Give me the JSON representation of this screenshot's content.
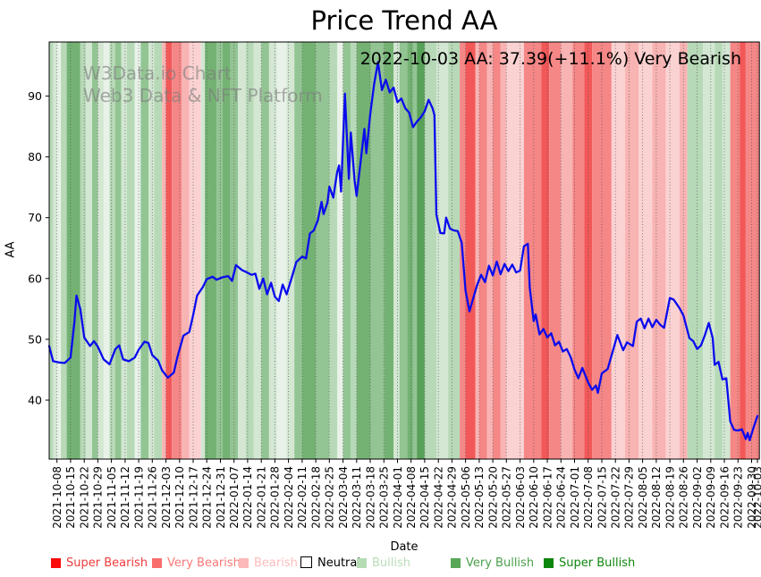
{
  "title": "Price Trend AA",
  "watermark": {
    "line1": "W3Data.io Chart",
    "line2": "Web3 Data & NFT Platform"
  },
  "annotation": {
    "text": "2022-10-03 AA: 37.39(+11.1%) Very Bearish"
  },
  "axes": {
    "x_label": "Date",
    "y_label": "AA"
  },
  "legend": {
    "items": [
      {
        "label": "Super Bearish",
        "swatch_color": "#fa0a0a",
        "text_color": "#ef3b3b",
        "swatch_border": "none"
      },
      {
        "label": "Very Bearish",
        "swatch_color": "#fa6d6d",
        "text_color": "#fa7878",
        "swatch_border": "none"
      },
      {
        "label": "Bearish",
        "swatch_color": "#fcb8b8",
        "text_color": "#fcbcbc",
        "swatch_border": "none"
      },
      {
        "label": "Neutral",
        "swatch_color": "#ffffff",
        "text_color": "#000000",
        "swatch_border": "1px solid #000000"
      },
      {
        "label": "Bullish",
        "swatch_color": "#b5dcb5",
        "text_color": "#b8ddb8",
        "swatch_border": "none"
      },
      {
        "label": "Very Bullish",
        "swatch_color": "#57a757",
        "text_color": "#4ba04b",
        "swatch_border": "none"
      },
      {
        "label": "Super Bullish",
        "swatch_color": "#0c860c",
        "text_color": "#0e870e",
        "swatch_border": "none"
      }
    ]
  },
  "chart_data": {
    "type": "line",
    "title": "Price Trend AA",
    "xlabel": "Date",
    "ylabel": "AA",
    "x_start_date": "2021-10-04",
    "x_end_date": "2022-10-03",
    "x_days_total": 365,
    "ylim": [
      30.3,
      98.9
    ],
    "y_ticks": [
      40,
      50,
      60,
      70,
      80,
      90
    ],
    "grid": {
      "vertical_dotted": true,
      "horizontal": false,
      "color": "#4a4a4a"
    },
    "x_tick_days": [
      4,
      11,
      18,
      25,
      32,
      39,
      46,
      53,
      60,
      67,
      74,
      81,
      88,
      95,
      102,
      109,
      116,
      123,
      130,
      137,
      144,
      151,
      158,
      165,
      172,
      179,
      186,
      193,
      200,
      207,
      214,
      221,
      228,
      235,
      242,
      249,
      256,
      263,
      270,
      277,
      284,
      291,
      298,
      305,
      312,
      319,
      326,
      333,
      340,
      347,
      354,
      361,
      364
    ],
    "x_tick_labels": [
      "2021-10-08",
      "2021-10-15",
      "2021-10-22",
      "2021-10-29",
      "2021-11-05",
      "2021-11-12",
      "2021-11-19",
      "2021-11-26",
      "2021-12-03",
      "2021-12-10",
      "2021-12-17",
      "2021-12-24",
      "2021-12-31",
      "2022-01-07",
      "2022-01-14",
      "2022-01-21",
      "2022-01-28",
      "2022-02-04",
      "2022-02-11",
      "2022-02-18",
      "2022-02-25",
      "2022-03-04",
      "2022-03-11",
      "2022-03-18",
      "2022-03-25",
      "2022-04-01",
      "2022-04-08",
      "2022-04-15",
      "2022-04-22",
      "2022-04-29",
      "2022-05-06",
      "2022-05-13",
      "2022-05-20",
      "2022-05-27",
      "2022-06-03",
      "2022-06-10",
      "2022-06-17",
      "2022-06-24",
      "2022-07-01",
      "2022-07-08",
      "2022-07-15",
      "2022-07-22",
      "2022-07-29",
      "2022-08-05",
      "2022-08-12",
      "2022-08-19",
      "2022-08-26",
      "2022-09-02",
      "2022-09-09",
      "2022-09-16",
      "2022-09-23",
      "2022-09-30",
      "2022-10-03"
    ],
    "series": [
      {
        "name": "AA",
        "color": "#0b0bee",
        "points": [
          [
            0,
            48.9
          ],
          [
            2,
            46.4
          ],
          [
            5,
            46.2
          ],
          [
            8,
            46.1
          ],
          [
            11,
            47.0
          ],
          [
            13,
            53.0
          ],
          [
            14,
            57.2
          ],
          [
            16,
            55.0
          ],
          [
            18,
            50.3
          ],
          [
            21,
            48.9
          ],
          [
            23,
            49.7
          ],
          [
            25,
            48.8
          ],
          [
            28,
            46.7
          ],
          [
            31,
            45.9
          ],
          [
            34,
            48.4
          ],
          [
            36,
            49.0
          ],
          [
            38,
            46.7
          ],
          [
            41,
            46.4
          ],
          [
            44,
            47.0
          ],
          [
            46,
            48.3
          ],
          [
            49,
            49.6
          ],
          [
            51,
            49.4
          ],
          [
            53,
            47.4
          ],
          [
            56,
            46.5
          ],
          [
            58,
            44.9
          ],
          [
            61,
            43.7
          ],
          [
            64,
            44.5
          ],
          [
            66,
            47.2
          ],
          [
            69,
            50.6
          ],
          [
            72,
            51.2
          ],
          [
            74,
            54.0
          ],
          [
            76,
            57.2
          ],
          [
            79,
            58.6
          ],
          [
            81,
            59.9
          ],
          [
            84,
            60.3
          ],
          [
            86,
            59.8
          ],
          [
            89,
            60.2
          ],
          [
            92,
            60.4
          ],
          [
            94,
            59.6
          ],
          [
            96,
            62.2
          ],
          [
            99,
            61.4
          ],
          [
            101,
            61.1
          ],
          [
            104,
            60.6
          ],
          [
            106,
            60.8
          ],
          [
            108,
            58.3
          ],
          [
            110,
            60.0
          ],
          [
            112,
            57.4
          ],
          [
            114,
            59.3
          ],
          [
            116,
            57.0
          ],
          [
            118,
            56.3
          ],
          [
            120,
            59.0
          ],
          [
            122,
            57.4
          ],
          [
            125,
            60.5
          ],
          [
            127,
            62.7
          ],
          [
            130,
            63.6
          ],
          [
            132,
            63.3
          ],
          [
            134,
            67.4
          ],
          [
            136,
            67.9
          ],
          [
            138,
            69.5
          ],
          [
            140,
            72.6
          ],
          [
            141,
            70.6
          ],
          [
            143,
            72.5
          ],
          [
            144,
            75.1
          ],
          [
            146,
            73.3
          ],
          [
            148,
            77.5
          ],
          [
            149,
            78.6
          ],
          [
            150,
            74.3
          ],
          [
            152,
            90.4
          ],
          [
            154,
            76.4
          ],
          [
            155,
            84.0
          ],
          [
            157,
            76.0
          ],
          [
            158,
            73.6
          ],
          [
            160,
            79.0
          ],
          [
            162,
            84.6
          ],
          [
            163,
            80.6
          ],
          [
            165,
            87.0
          ],
          [
            167,
            92.0
          ],
          [
            169,
            95.6
          ],
          [
            171,
            91.0
          ],
          [
            173,
            92.7
          ],
          [
            175,
            90.6
          ],
          [
            177,
            91.4
          ],
          [
            179,
            89.0
          ],
          [
            181,
            89.6
          ],
          [
            183,
            88.0
          ],
          [
            185,
            87.3
          ],
          [
            187,
            84.9
          ],
          [
            189,
            85.8
          ],
          [
            191,
            86.5
          ],
          [
            193,
            87.5
          ],
          [
            195,
            89.4
          ],
          [
            197,
            88.0
          ],
          [
            198,
            86.9
          ],
          [
            199,
            70.5
          ],
          [
            201,
            67.5
          ],
          [
            203,
            67.4
          ],
          [
            204,
            70.0
          ],
          [
            206,
            68.2
          ],
          [
            208,
            67.9
          ],
          [
            210,
            67.8
          ],
          [
            212,
            65.9
          ],
          [
            214,
            58.0
          ],
          [
            216,
            54.6
          ],
          [
            218,
            56.8
          ],
          [
            220,
            59.0
          ],
          [
            222,
            60.6
          ],
          [
            224,
            59.4
          ],
          [
            226,
            62.1
          ],
          [
            228,
            60.5
          ],
          [
            230,
            62.8
          ],
          [
            232,
            60.7
          ],
          [
            234,
            62.4
          ],
          [
            236,
            61.2
          ],
          [
            238,
            62.3
          ],
          [
            240,
            61.0
          ],
          [
            242,
            61.3
          ],
          [
            244,
            65.3
          ],
          [
            246,
            65.7
          ],
          [
            247,
            58.5
          ],
          [
            249,
            53.0
          ],
          [
            250,
            54.1
          ],
          [
            252,
            50.8
          ],
          [
            254,
            51.7
          ],
          [
            256,
            50.3
          ],
          [
            258,
            51.0
          ],
          [
            260,
            49.0
          ],
          [
            262,
            49.6
          ],
          [
            264,
            48.0
          ],
          [
            266,
            48.4
          ],
          [
            268,
            47.1
          ],
          [
            270,
            45.0
          ],
          [
            272,
            43.6
          ],
          [
            274,
            45.3
          ],
          [
            277,
            42.9
          ],
          [
            279,
            41.7
          ],
          [
            281,
            42.4
          ],
          [
            282,
            41.2
          ],
          [
            284,
            44.4
          ],
          [
            287,
            45.1
          ],
          [
            289,
            47.3
          ],
          [
            292,
            50.7
          ],
          [
            295,
            48.2
          ],
          [
            297,
            49.5
          ],
          [
            300,
            48.9
          ],
          [
            302,
            52.9
          ],
          [
            304,
            53.4
          ],
          [
            306,
            51.8
          ],
          [
            308,
            53.4
          ],
          [
            310,
            52.0
          ],
          [
            312,
            53.2
          ],
          [
            314,
            52.4
          ],
          [
            316,
            51.9
          ],
          [
            319,
            56.8
          ],
          [
            321,
            56.5
          ],
          [
            324,
            55.1
          ],
          [
            326,
            53.9
          ],
          [
            329,
            50.2
          ],
          [
            331,
            49.7
          ],
          [
            333,
            48.4
          ],
          [
            335,
            49.0
          ],
          [
            337,
            50.7
          ],
          [
            339,
            52.7
          ],
          [
            341,
            50.2
          ],
          [
            342,
            45.8
          ],
          [
            344,
            46.3
          ],
          [
            346,
            43.4
          ],
          [
            348,
            43.6
          ],
          [
            350,
            36.5
          ],
          [
            352,
            35.1
          ],
          [
            354,
            35.0
          ],
          [
            356,
            35.2
          ],
          [
            358,
            33.6
          ],
          [
            359,
            34.6
          ],
          [
            360,
            33.4
          ],
          [
            362,
            35.5
          ],
          [
            364,
            37.39
          ]
        ]
      }
    ],
    "sentiment_bands": {
      "palette": [
        "#f25858",
        "#f58787",
        "#f8b3b3",
        "#fbd2d2",
        "#ffffff",
        "#e9f2e9",
        "#d3e7d3",
        "#b7d9b7",
        "#93c493",
        "#74b274",
        "#58a158"
      ],
      "palette_names": [
        "super-bearish",
        "very-bearish",
        "bearish",
        "bearish-pale",
        "neutral",
        "bullish-palest",
        "bullish-pale",
        "bullish",
        "very-bullish-light",
        "very-bullish",
        "super-bullish"
      ],
      "runs": [
        [
          7,
          2
        ],
        [
          6,
          2
        ],
        [
          5,
          2
        ],
        [
          7,
          3
        ],
        [
          9,
          7
        ],
        [
          7,
          3
        ],
        [
          6,
          3
        ],
        [
          8,
          3
        ],
        [
          6,
          3
        ],
        [
          5,
          3
        ],
        [
          7,
          3
        ],
        [
          8,
          3
        ],
        [
          6,
          3
        ],
        [
          7,
          4
        ],
        [
          5,
          3
        ],
        [
          8,
          4
        ],
        [
          6,
          3
        ],
        [
          7,
          4
        ],
        [
          2,
          2
        ],
        [
          0,
          3
        ],
        [
          1,
          5
        ],
        [
          2,
          4
        ],
        [
          3,
          6
        ],
        [
          6,
          2
        ],
        [
          9,
          6
        ],
        [
          8,
          3
        ],
        [
          9,
          4
        ],
        [
          8,
          4
        ],
        [
          6,
          4
        ],
        [
          7,
          4
        ],
        [
          6,
          4
        ],
        [
          8,
          4
        ],
        [
          6,
          4
        ],
        [
          5,
          5
        ],
        [
          6,
          4
        ],
        [
          8,
          4
        ],
        [
          9,
          7
        ],
        [
          8,
          7
        ],
        [
          7,
          4
        ],
        [
          5,
          3
        ],
        [
          8,
          4
        ],
        [
          7,
          3
        ],
        [
          9,
          7
        ],
        [
          8,
          7
        ],
        [
          9,
          5
        ],
        [
          6,
          3
        ],
        [
          8,
          4
        ],
        [
          9,
          3
        ],
        [
          8,
          2
        ],
        [
          10,
          4
        ],
        [
          7,
          6
        ],
        [
          6,
          6
        ],
        [
          7,
          6
        ],
        [
          1,
          3
        ],
        [
          0,
          5
        ],
        [
          2,
          2
        ],
        [
          1,
          4
        ],
        [
          2,
          3
        ],
        [
          1,
          4
        ],
        [
          2,
          3
        ],
        [
          3,
          9
        ],
        [
          1,
          9
        ],
        [
          0,
          4
        ],
        [
          1,
          6
        ],
        [
          2,
          6
        ],
        [
          1,
          6
        ],
        [
          0,
          4
        ],
        [
          1,
          10
        ],
        [
          3,
          7
        ],
        [
          2,
          7
        ],
        [
          3,
          7
        ],
        [
          2,
          7
        ],
        [
          3,
          7
        ],
        [
          2,
          4
        ],
        [
          7,
          8
        ],
        [
          6,
          6
        ],
        [
          7,
          4
        ],
        [
          6,
          4
        ],
        [
          1,
          5
        ],
        [
          0,
          3
        ],
        [
          1,
          7
        ]
      ]
    },
    "last_point": {
      "date": "2022-10-03",
      "value": 37.39,
      "change": "+11.1%",
      "sentiment": "Very Bearish"
    }
  }
}
